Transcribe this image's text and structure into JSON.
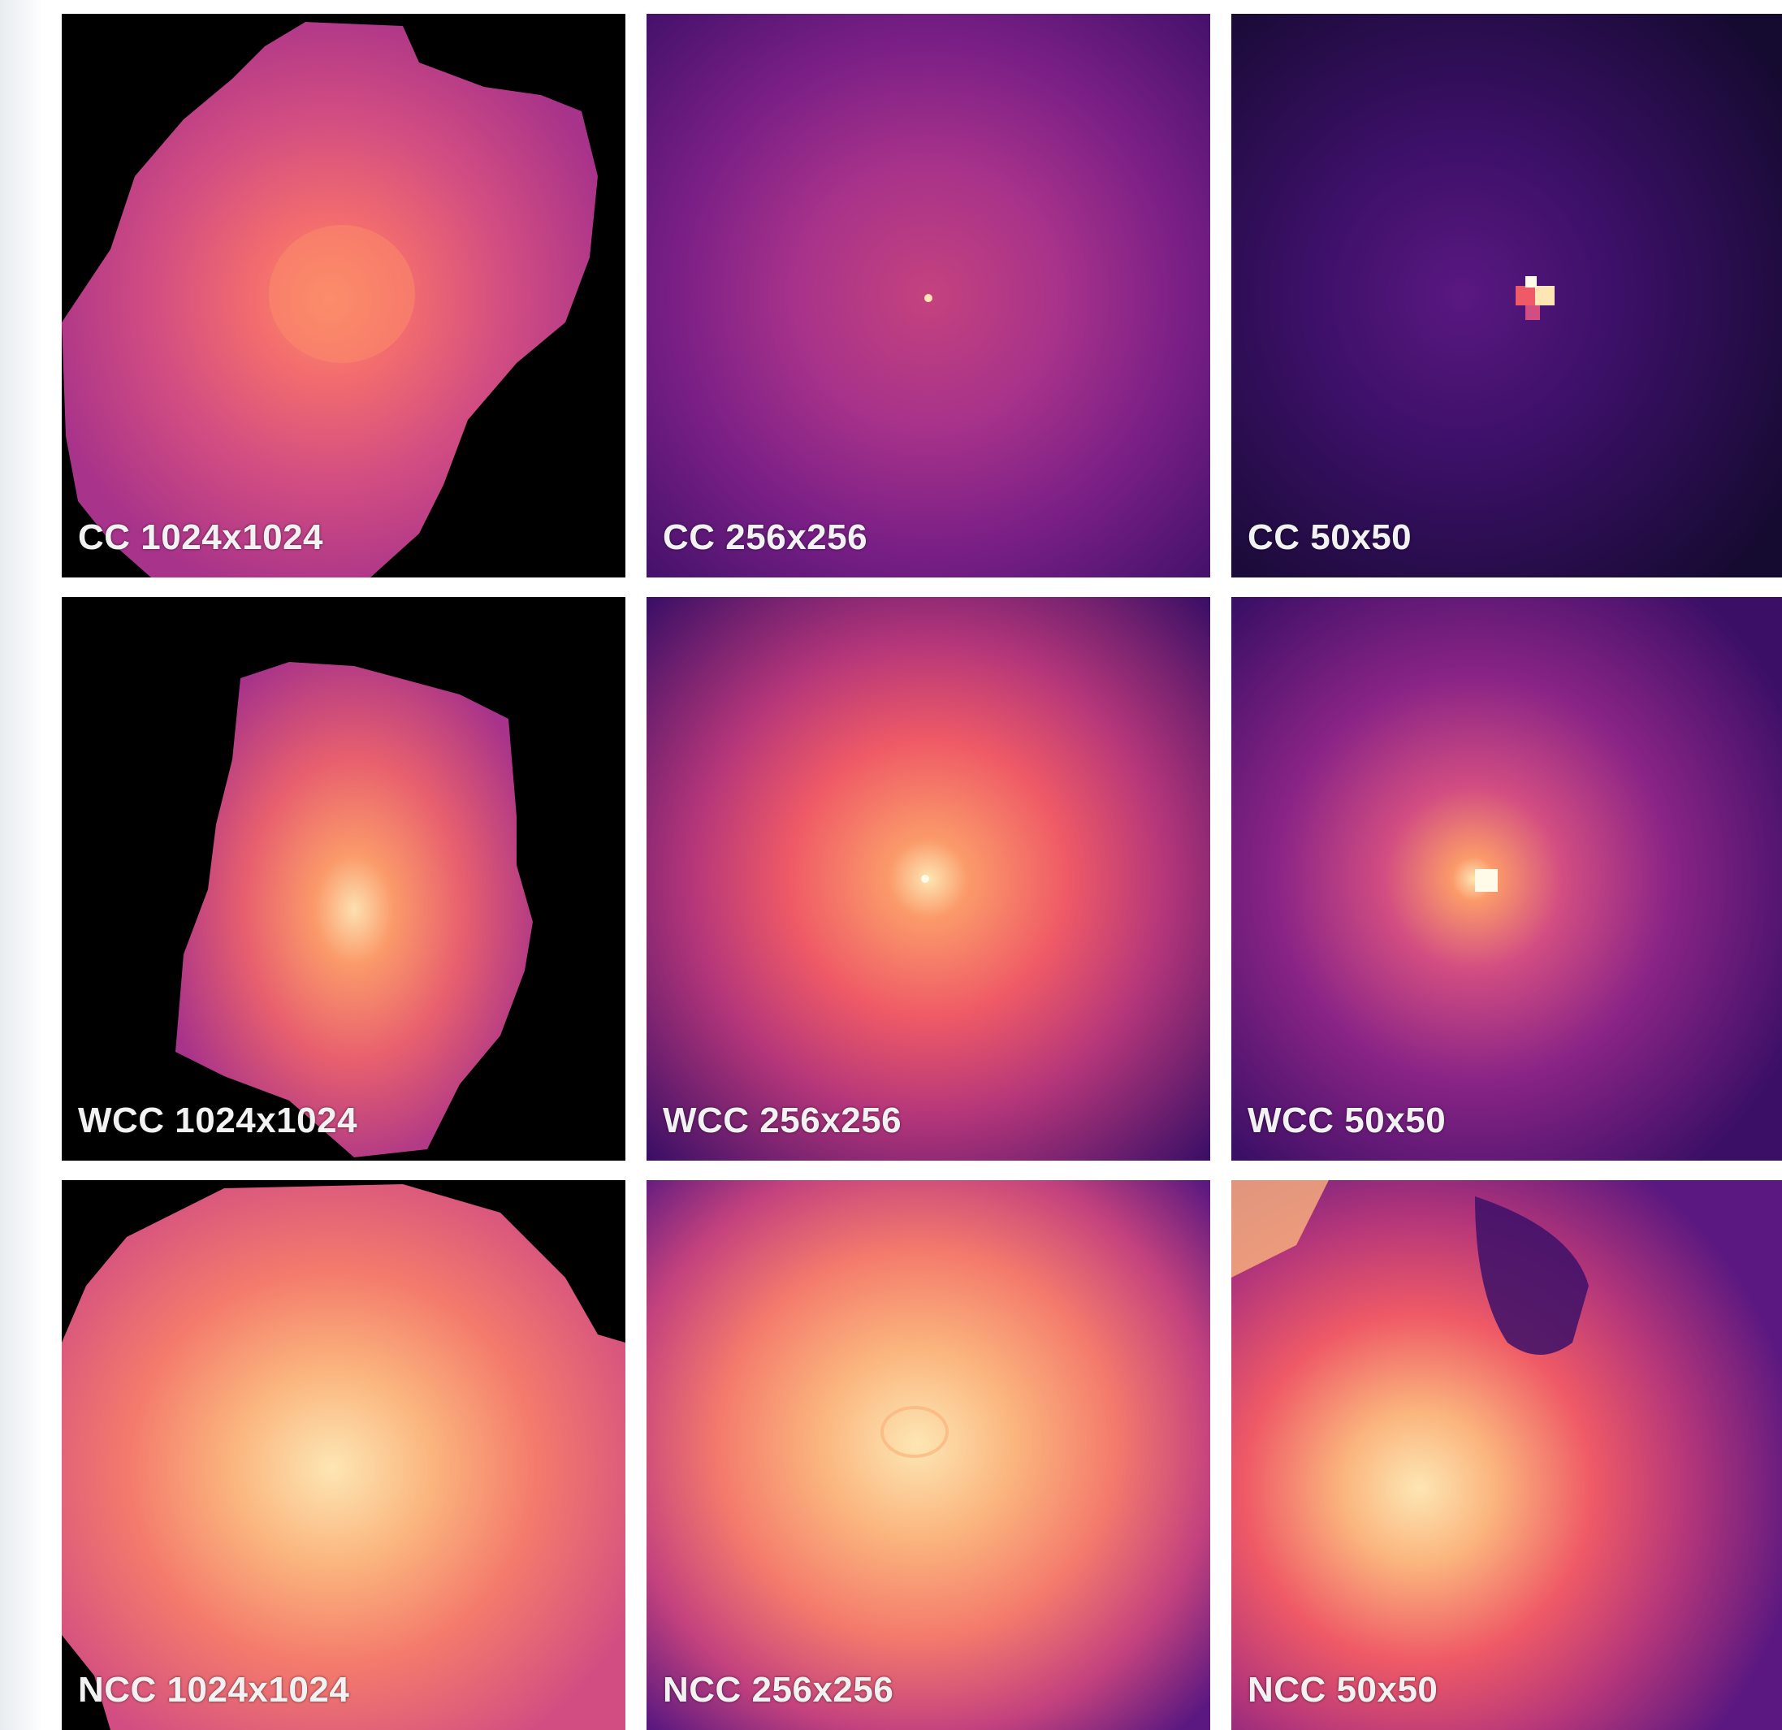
{
  "panels": [
    {
      "label": "CC 1024x1024",
      "row": "CC",
      "resolution": "1024x1024"
    },
    {
      "label": "CC 256x256",
      "row": "CC",
      "resolution": "256x256"
    },
    {
      "label": "CC 50x50",
      "row": "CC",
      "resolution": "50x50"
    },
    {
      "label": "WCC 1024x1024",
      "row": "WCC",
      "resolution": "1024x1024"
    },
    {
      "label": "WCC 256x256",
      "row": "WCC",
      "resolution": "256x256"
    },
    {
      "label": "WCC 50x50",
      "row": "WCC",
      "resolution": "50x50"
    },
    {
      "label": "NCC 1024x1024",
      "row": "NCC",
      "resolution": "1024x1024"
    },
    {
      "label": "NCC 256x256",
      "row": "NCC",
      "resolution": "256x256"
    },
    {
      "label": "NCC 50x50",
      "row": "NCC",
      "resolution": "50x50"
    }
  ],
  "colormap": "magma",
  "colors": {
    "background": "#000000",
    "dark_purple": "#2b0b4f",
    "purple": "#6a1a80",
    "magenta": "#b5367a",
    "pink": "#ef5a66",
    "orange": "#fb9a6a",
    "cream": "#fde6b3",
    "white": "#fffbe8"
  }
}
